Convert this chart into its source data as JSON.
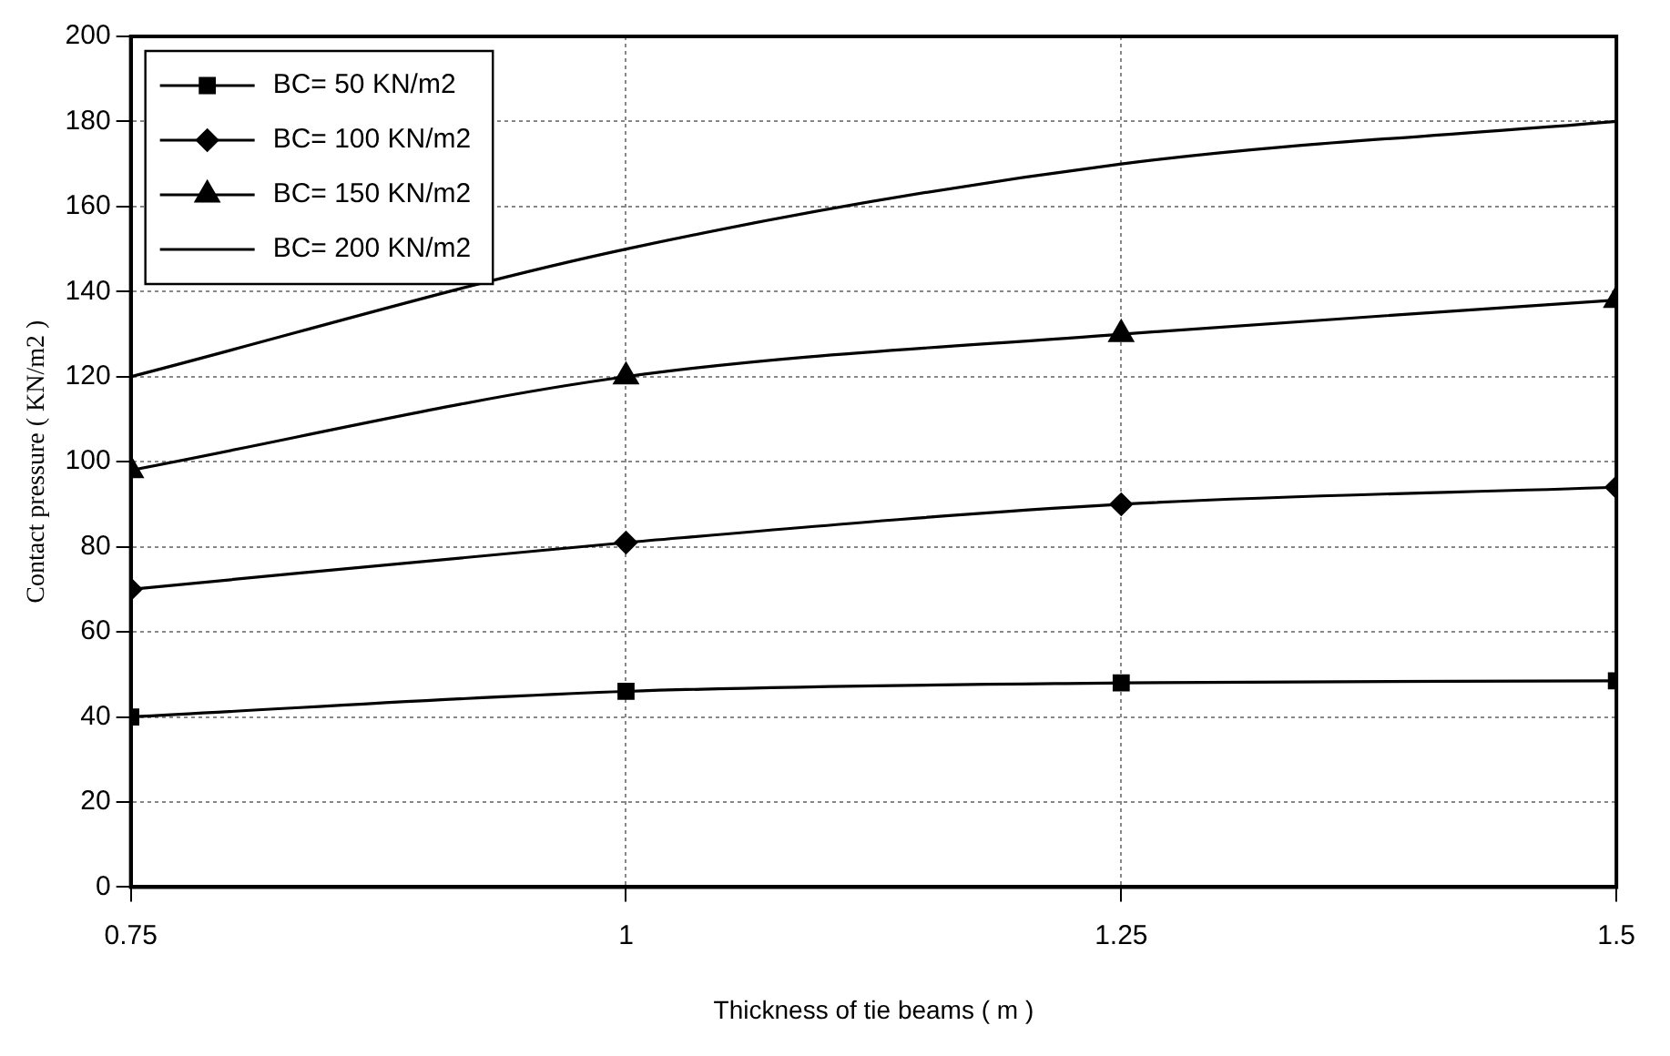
{
  "chart_data": {
    "type": "line",
    "xlabel": "Thickness of tie beams ( m )",
    "ylabel": "Contact pressure ( KN/m2 )",
    "x": [
      0.75,
      1,
      1.25,
      1.5
    ],
    "series": [
      {
        "name": "BC= 50 KN/m2",
        "color": "#000000",
        "marker": "square",
        "values": [
          40,
          46,
          48,
          48.5
        ]
      },
      {
        "name": "BC= 100 KN/m2",
        "color": "#000000",
        "marker": "diamond",
        "values": [
          70,
          81,
          90,
          94
        ]
      },
      {
        "name": "BC= 150 KN/m2",
        "color": "#000000",
        "marker": "triangle",
        "values": [
          98,
          120,
          130,
          138
        ]
      },
      {
        "name": "BC= 200 KN/m2",
        "color": "#000000",
        "marker": "none",
        "values": [
          120,
          150,
          170,
          180
        ]
      }
    ],
    "xlim": [
      0.75,
      1.5
    ],
    "xticks": [
      0.75,
      1,
      1.25,
      1.5
    ],
    "ylim": [
      0,
      200
    ],
    "yticks": [
      0,
      20,
      40,
      60,
      80,
      100,
      120,
      140,
      160,
      180,
      200
    ],
    "grid": true,
    "legend": "top left",
    "line_style": "solid"
  }
}
